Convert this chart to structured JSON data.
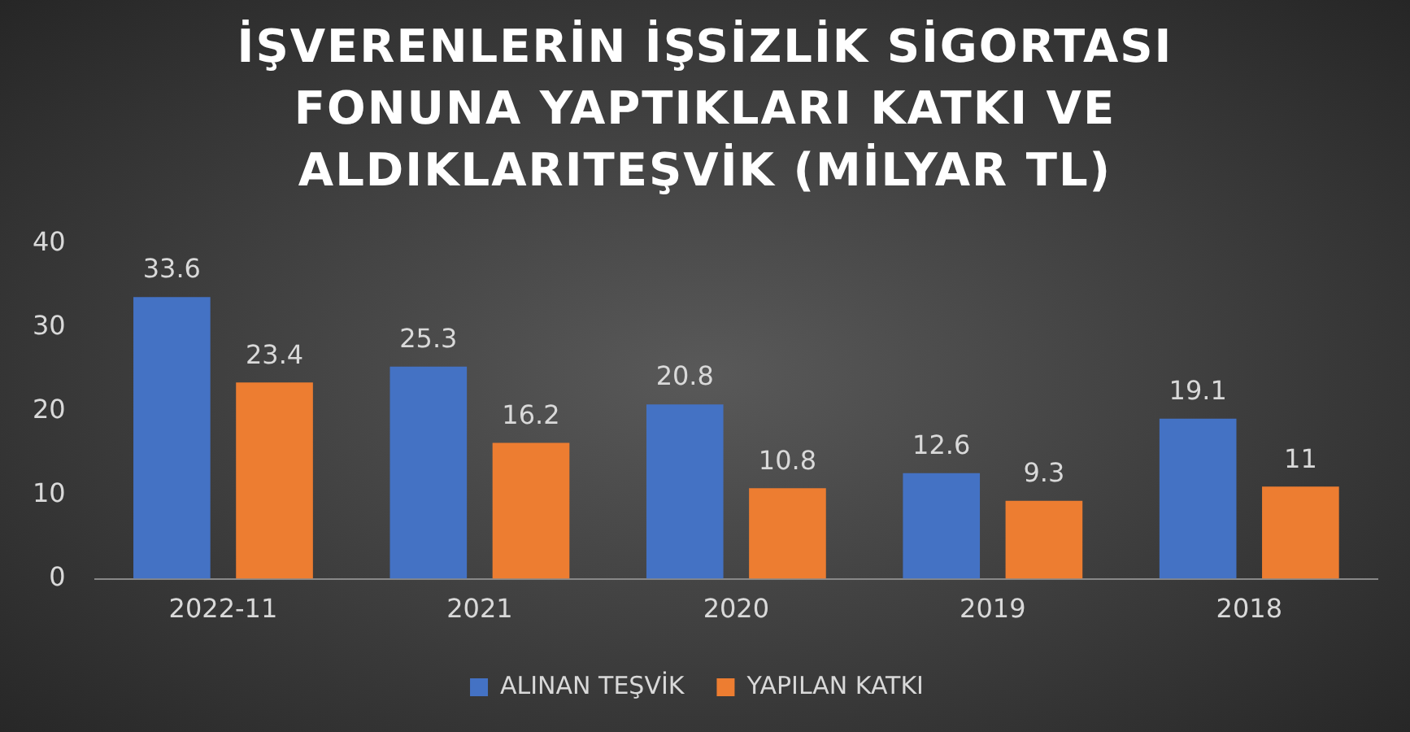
{
  "chart_data": {
    "type": "bar",
    "title": "İŞVERENLERİN İŞSİZLİK SİGORTASI FONUNA YAPTIKLARI KATKI VE ALDIKLARITEŞVİK (MİLYAR TL)",
    "categories": [
      "2022-11",
      "2021",
      "2020",
      "2019",
      "2018"
    ],
    "series": [
      {
        "name": "ALINAN TEŞVİK",
        "color": "#4472c4",
        "values": [
          33.6,
          25.3,
          20.8,
          12.6,
          19.1
        ]
      },
      {
        "name": "YAPILAN KATKI",
        "color": "#ed7d31",
        "values": [
          23.4,
          16.2,
          10.8,
          9.3,
          11
        ]
      }
    ],
    "ylim": [
      0,
      40
    ],
    "yticks": [
      0,
      10,
      20,
      30,
      40
    ],
    "grid": false,
    "legend": "bottom",
    "data_labels": true
  }
}
